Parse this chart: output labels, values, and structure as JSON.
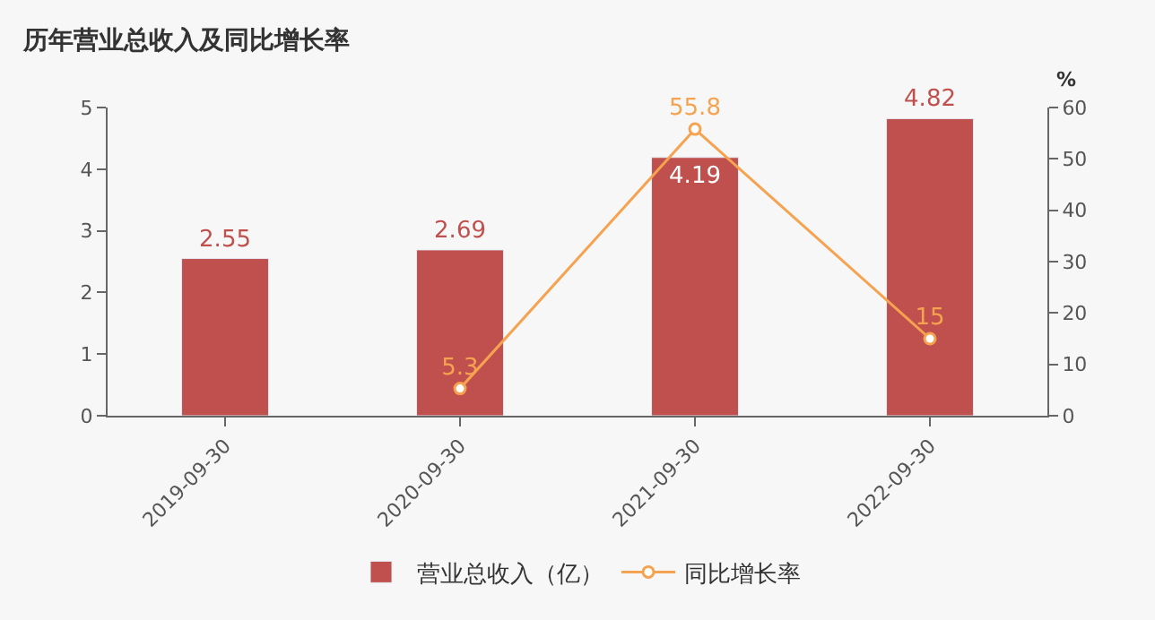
{
  "chart_data": {
    "type": "bar",
    "title": "历年营业总收入及同比增长率",
    "y2label": "%",
    "categories": [
      "2019-09-30",
      "2020-09-30",
      "2021-09-30",
      "2022-09-30"
    ],
    "series": [
      {
        "name": "营业总收入（亿）",
        "type": "bar",
        "color": "#c0504d",
        "values": [
          2.55,
          2.69,
          4.19,
          4.82
        ]
      },
      {
        "name": "同比增长率",
        "type": "line",
        "axis": "y2",
        "color": "#f5a351",
        "marker": "circle",
        "values": [
          null,
          5.3,
          55.8,
          15
        ]
      }
    ],
    "ylim": [
      0,
      5
    ],
    "yticks": [
      0,
      1,
      2,
      3,
      4,
      5
    ],
    "y2lim": [
      0,
      60
    ],
    "y2ticks": [
      0,
      10,
      20,
      30,
      40,
      50,
      60
    ],
    "data_labels": true,
    "grid": false,
    "legend": "bottom"
  }
}
